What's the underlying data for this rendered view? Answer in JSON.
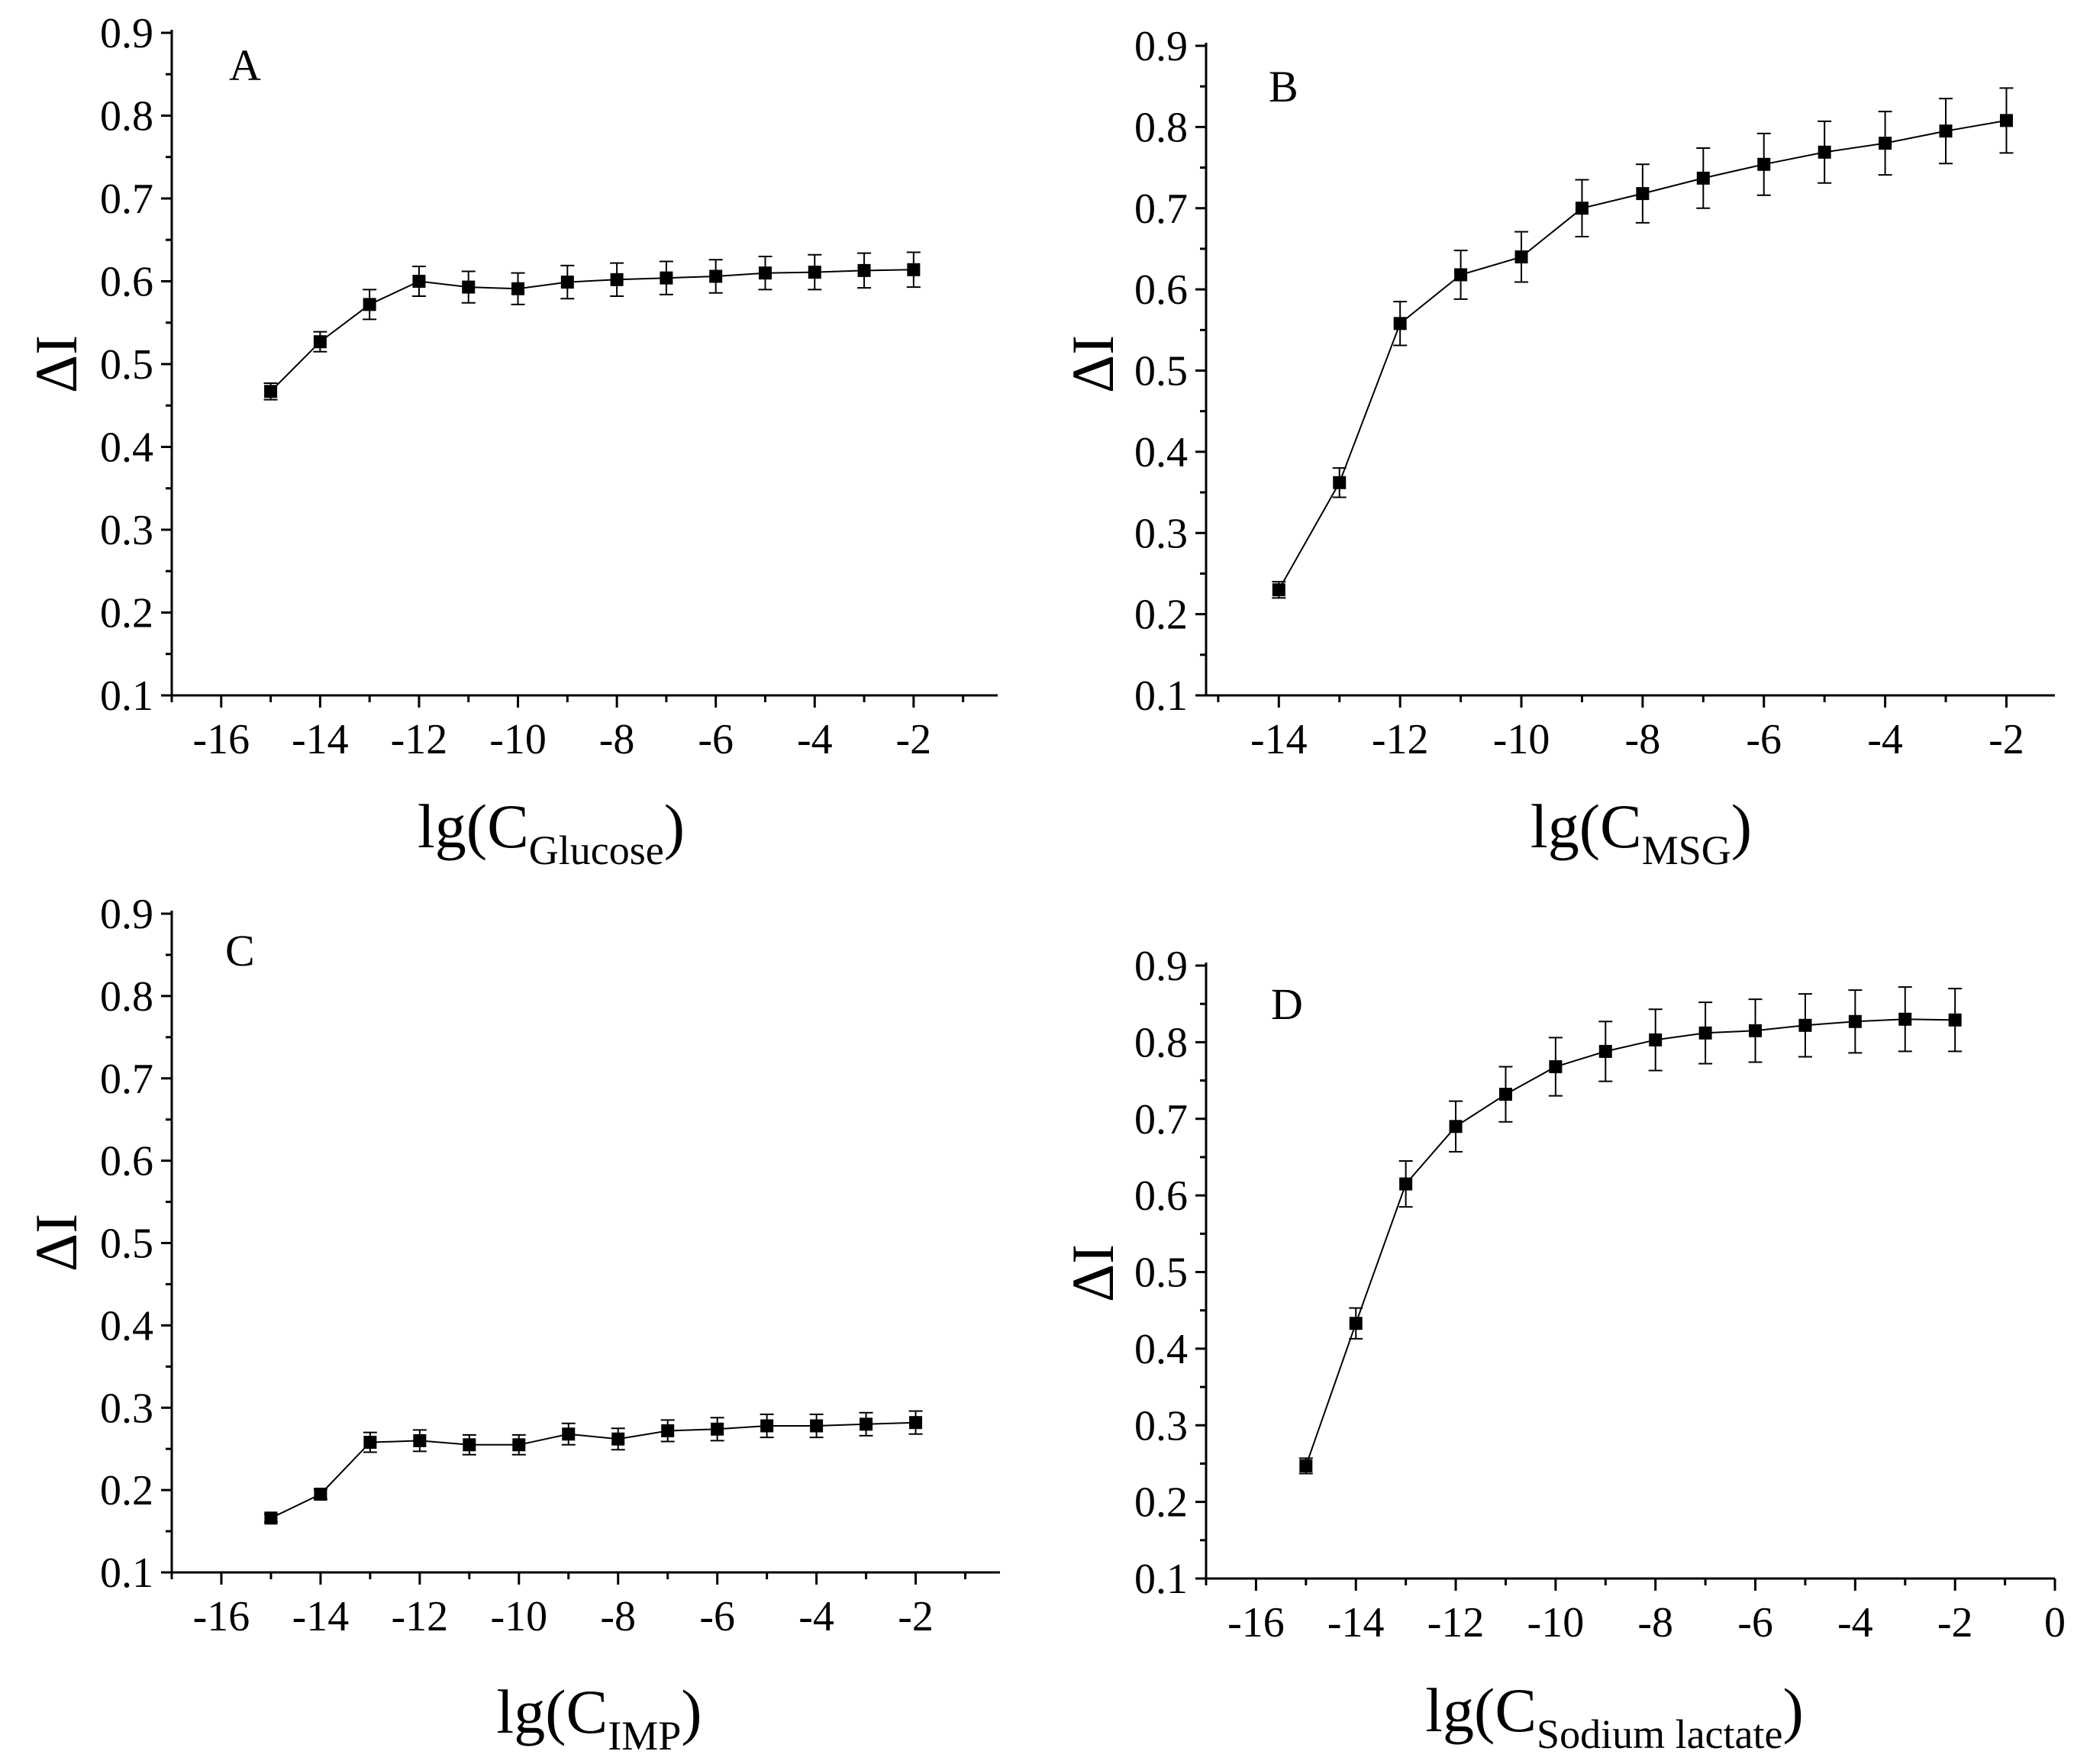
{
  "chart_data": [
    {
      "id": "A",
      "type": "line",
      "panel_label": "A",
      "ylabel": "ΔI",
      "xlabel": {
        "prefix": "lg",
        "var": "C",
        "sub": "Glucose"
      },
      "xlim": [
        -17,
        -0.3
      ],
      "ylim": [
        0.1,
        0.9
      ],
      "xticks": [
        -16,
        -14,
        -12,
        -10,
        -8,
        -6,
        -4,
        -2
      ],
      "xtick_labels": [
        "-16",
        "-14",
        "-12",
        "-10",
        "-8",
        "-6",
        "-4",
        "-2"
      ],
      "yticks": [
        0.1,
        0.2,
        0.3,
        0.4,
        0.5,
        0.6,
        0.7,
        0.8,
        0.9
      ],
      "ytick_labels": [
        "0.1",
        "0.2",
        "0.3",
        "0.4",
        "0.5",
        "0.6",
        "0.7",
        "0.8",
        "0.9"
      ],
      "x": [
        -15,
        -14,
        -13,
        -12,
        -11,
        -10,
        -9,
        -8,
        -7,
        -6,
        -5,
        -4,
        -3,
        -2
      ],
      "y": [
        0.467,
        0.527,
        0.572,
        0.6,
        0.593,
        0.591,
        0.599,
        0.602,
        0.604,
        0.606,
        0.61,
        0.611,
        0.613,
        0.614
      ],
      "err": [
        0.01,
        0.012,
        0.018,
        0.018,
        0.019,
        0.019,
        0.02,
        0.02,
        0.02,
        0.02,
        0.02,
        0.021,
        0.021,
        0.021
      ]
    },
    {
      "id": "B",
      "type": "line",
      "panel_label": "B",
      "ylabel": "ΔI",
      "xlabel": {
        "prefix": "lg",
        "var": "C",
        "sub": "MSG"
      },
      "xlim": [
        -15.2,
        -1.2
      ],
      "ylim": [
        0.1,
        0.9
      ],
      "xticks": [
        -14,
        -12,
        -10,
        -8,
        -6,
        -4,
        -2
      ],
      "xtick_labels": [
        "-14",
        "-12",
        "-10",
        "-8",
        "-6",
        "-4",
        "-2"
      ],
      "yticks": [
        0.1,
        0.2,
        0.3,
        0.4,
        0.5,
        0.6,
        0.7,
        0.8,
        0.9
      ],
      "ytick_labels": [
        "0.1",
        "0.2",
        "0.3",
        "0.4",
        "0.5",
        "0.6",
        "0.7",
        "0.8",
        "0.9"
      ],
      "x": [
        -14,
        -13,
        -12,
        -11,
        -10,
        -9,
        -8,
        -7,
        -6,
        -5,
        -4,
        -3,
        -2
      ],
      "y": [
        0.23,
        0.362,
        0.558,
        0.618,
        0.64,
        0.7,
        0.718,
        0.737,
        0.754,
        0.769,
        0.78,
        0.795,
        0.808
      ],
      "err": [
        0.01,
        0.018,
        0.027,
        0.03,
        0.031,
        0.035,
        0.036,
        0.037,
        0.038,
        0.038,
        0.039,
        0.04,
        0.04
      ]
    },
    {
      "id": "C",
      "type": "line",
      "panel_label": "C",
      "ylabel": "ΔI",
      "xlabel": {
        "prefix": "lg",
        "var": "C",
        "sub": "IMP"
      },
      "xlim": [
        -17,
        -0.3
      ],
      "ylim": [
        0.1,
        0.9
      ],
      "xticks": [
        -16,
        -14,
        -12,
        -10,
        -8,
        -6,
        -4,
        -2
      ],
      "xtick_labels": [
        "-16",
        "-14",
        "-12",
        "-10",
        "-8",
        "-6",
        "-4",
        "-2"
      ],
      "yticks": [
        0.1,
        0.2,
        0.3,
        0.4,
        0.5,
        0.6,
        0.7,
        0.8,
        0.9
      ],
      "ytick_labels": [
        "0.1",
        "0.2",
        "0.3",
        "0.4",
        "0.5",
        "0.6",
        "0.7",
        "0.8",
        "0.9"
      ],
      "x": [
        -15,
        -14,
        -13,
        -12,
        -11,
        -10,
        -9,
        -8,
        -7,
        -6,
        -5,
        -4,
        -3,
        -2
      ],
      "y": [
        0.166,
        0.195,
        0.258,
        0.26,
        0.255,
        0.255,
        0.268,
        0.262,
        0.272,
        0.274,
        0.278,
        0.278,
        0.28,
        0.282
      ],
      "err": [
        0.005,
        0.006,
        0.012,
        0.013,
        0.012,
        0.012,
        0.013,
        0.013,
        0.013,
        0.014,
        0.014,
        0.014,
        0.014,
        0.014
      ]
    },
    {
      "id": "D",
      "type": "line",
      "panel_label": "D",
      "ylabel": "ΔI",
      "xlabel": {
        "prefix": "lg",
        "var": "C",
        "sub": "Sodium lactate"
      },
      "xlim": [
        -17,
        0
      ],
      "ylim": [
        0.1,
        0.9
      ],
      "xticks": [
        -16,
        -14,
        -12,
        -10,
        -8,
        -6,
        -4,
        -2,
        0
      ],
      "xtick_labels": [
        "-16",
        "-14",
        "-12",
        "-10",
        "-8",
        "-6",
        "-4",
        "-2",
        "0"
      ],
      "yticks": [
        0.1,
        0.2,
        0.3,
        0.4,
        0.5,
        0.6,
        0.7,
        0.8,
        0.9
      ],
      "ytick_labels": [
        "0.1",
        "0.2",
        "0.3",
        "0.4",
        "0.5",
        "0.6",
        "0.7",
        "0.8",
        "0.9"
      ],
      "x": [
        -15,
        -14,
        -13,
        -12,
        -11,
        -10,
        -9,
        -8,
        -7,
        -6,
        -5,
        -4,
        -3,
        -2
      ],
      "y": [
        0.247,
        0.433,
        0.615,
        0.69,
        0.732,
        0.768,
        0.788,
        0.803,
        0.812,
        0.815,
        0.822,
        0.827,
        0.83,
        0.829
      ],
      "err": [
        0.01,
        0.02,
        0.03,
        0.033,
        0.036,
        0.038,
        0.039,
        0.04,
        0.04,
        0.041,
        0.041,
        0.041,
        0.042,
        0.041
      ]
    }
  ]
}
